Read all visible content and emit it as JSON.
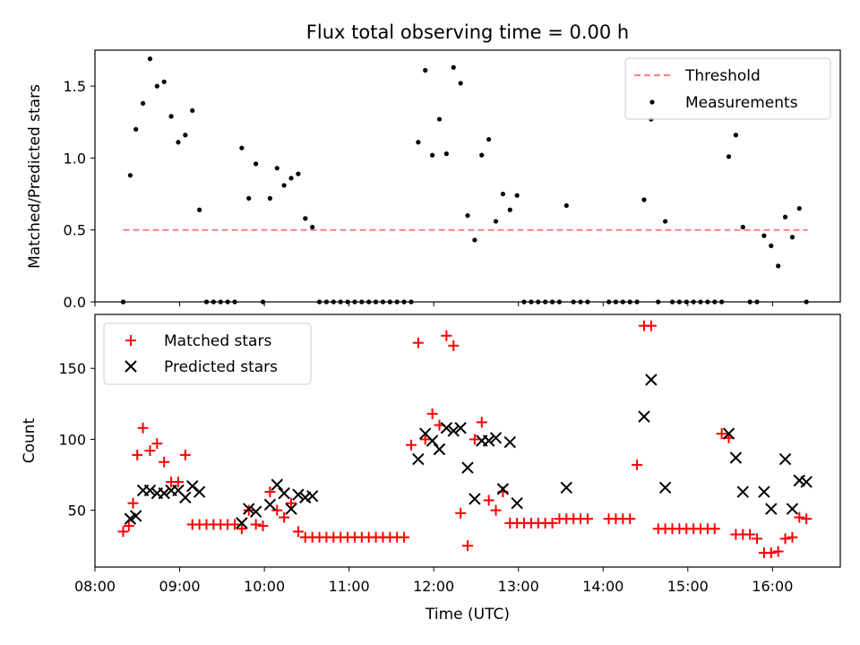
{
  "chart_data": [
    {
      "type": "scatter",
      "title": "Flux total observing time = 0.00 h",
      "xlabel": "",
      "ylabel": "Matched/Predicted stars",
      "xlim": [
        "08:00",
        "16:48"
      ],
      "ylim": [
        0,
        1.75
      ],
      "yticks": [
        "0.0",
        "0.5",
        "1.0",
        "1.5"
      ],
      "grid": false,
      "legend_placement": "top-right",
      "legend": [
        "Threshold",
        "Measurements"
      ],
      "threshold": {
        "name": "Threshold",
        "value": 0.5,
        "x_start": "08:20",
        "x_end": "16:25",
        "color": "#ff7f7f"
      },
      "measurements": {
        "name": "Measurements",
        "color": "#000000",
        "x": [
          "08:20",
          "08:25",
          "08:29",
          "08:34",
          "08:39",
          "08:44",
          "08:49",
          "08:54",
          "08:59",
          "09:04",
          "09:09",
          "09:14",
          "09:19",
          "09:24",
          "09:29",
          "09:34",
          "09:39",
          "09:44",
          "09:49",
          "09:54",
          "09:59",
          "10:04",
          "10:09",
          "10:14",
          "10:19",
          "10:24",
          "10:29",
          "10:34",
          "10:39",
          "10:44",
          "10:49",
          "10:54",
          "10:59",
          "11:04",
          "11:09",
          "11:14",
          "11:19",
          "11:24",
          "11:29",
          "11:34",
          "11:39",
          "11:44",
          "11:49",
          "11:54",
          "11:59",
          "12:04",
          "12:09",
          "12:14",
          "12:19",
          "12:24",
          "12:29",
          "12:34",
          "12:39",
          "12:44",
          "12:49",
          "12:54",
          "12:59",
          "13:04",
          "13:09",
          "13:14",
          "13:19",
          "13:24",
          "13:29",
          "13:34",
          "13:39",
          "13:44",
          "13:49",
          "14:04",
          "14:09",
          "14:14",
          "14:19",
          "14:24",
          "14:29",
          "14:34",
          "14:39",
          "14:44",
          "14:49",
          "14:54",
          "14:59",
          "15:04",
          "15:09",
          "15:14",
          "15:19",
          "15:24",
          "15:29",
          "15:34",
          "15:39",
          "15:44",
          "15:49",
          "15:54",
          "15:59",
          "16:04",
          "16:09",
          "16:14",
          "16:19",
          "16:24"
        ],
        "y": [
          0,
          0.88,
          1.2,
          1.38,
          1.69,
          1.5,
          1.53,
          1.29,
          1.11,
          1.16,
          1.33,
          0.64,
          0,
          0,
          0,
          0,
          0,
          1.07,
          0.72,
          0.96,
          0,
          0.72,
          0.93,
          0.81,
          0.86,
          0.89,
          0.58,
          0.52,
          0,
          0,
          0,
          0,
          0,
          0,
          0,
          0,
          0,
          0,
          0,
          0,
          0,
          0,
          1.11,
          1.61,
          1.02,
          1.27,
          1.03,
          1.63,
          1.52,
          0.6,
          0.43,
          1.02,
          1.13,
          0.56,
          0.75,
          0.64,
          0.74,
          0,
          0,
          0,
          0,
          0,
          0,
          0.67,
          0,
          0,
          0,
          0,
          0,
          0,
          0,
          0,
          0.71,
          1.27,
          0,
          0.56,
          0,
          0,
          0,
          0,
          0,
          0,
          0,
          0,
          1.01,
          1.16,
          0.52,
          0,
          0,
          0.46,
          0.39,
          0.25,
          0.59,
          0.45,
          0.65,
          0
        ]
      }
    },
    {
      "type": "scatter",
      "title": "",
      "xlabel": "Time (UTC)",
      "ylabel": "Count",
      "xlim": [
        "08:00",
        "16:48"
      ],
      "ylim": [
        10,
        188
      ],
      "yticks": [
        "50",
        "100",
        "150"
      ],
      "xticks": [
        "08:00",
        "09:00",
        "10:00",
        "11:00",
        "12:00",
        "13:00",
        "14:00",
        "15:00",
        "16:00"
      ],
      "grid": false,
      "legend_placement": "top-left",
      "legend": [
        "Matched stars",
        "Predicted stars"
      ],
      "series": [
        {
          "name": "Matched stars",
          "marker": "plus",
          "color": "#ff0000",
          "x": [
            "08:20",
            "08:24",
            "08:27",
            "08:30",
            "08:34",
            "08:39",
            "08:44",
            "08:49",
            "08:54",
            "08:59",
            "09:04",
            "09:09",
            "09:14",
            "09:19",
            "09:24",
            "09:29",
            "09:34",
            "09:39",
            "09:44",
            "09:49",
            "09:54",
            "09:59",
            "10:04",
            "10:09",
            "10:14",
            "10:19",
            "10:24",
            "10:29",
            "10:34",
            "10:39",
            "10:44",
            "10:49",
            "10:54",
            "10:59",
            "11:04",
            "11:09",
            "11:14",
            "11:19",
            "11:24",
            "11:29",
            "11:34",
            "11:39",
            "11:44",
            "11:49",
            "11:54",
            "11:59",
            "12:04",
            "12:09",
            "12:14",
            "12:19",
            "12:24",
            "12:29",
            "12:34",
            "12:39",
            "12:44",
            "12:49",
            "12:54",
            "12:59",
            "13:04",
            "13:09",
            "13:14",
            "13:19",
            "13:24",
            "13:29",
            "13:34",
            "13:39",
            "13:44",
            "13:49",
            "14:04",
            "14:09",
            "14:14",
            "14:19",
            "14:24",
            "14:29",
            "14:34",
            "14:39",
            "14:44",
            "14:49",
            "14:54",
            "14:59",
            "15:04",
            "15:09",
            "15:14",
            "15:19",
            "15:24",
            "15:29",
            "15:34",
            "15:39",
            "15:44",
            "15:49",
            "15:54",
            "15:59",
            "16:04",
            "16:09",
            "16:14",
            "16:19",
            "16:24"
          ],
          "y": [
            35,
            39,
            55,
            89,
            108,
            92,
            97,
            84,
            70,
            70,
            89,
            40,
            40,
            40,
            40,
            40,
            40,
            40,
            37,
            50,
            40,
            39,
            63,
            50,
            45,
            55,
            35,
            31,
            31,
            31,
            31,
            31,
            31,
            31,
            31,
            31,
            31,
            31,
            31,
            31,
            31,
            31,
            96,
            168,
            100,
            118,
            110,
            173,
            166,
            48,
            25,
            100,
            112,
            57,
            50,
            63,
            41,
            41,
            41,
            41,
            41,
            41,
            41,
            44,
            44,
            44,
            44,
            44,
            44,
            44,
            44,
            44,
            82,
            180,
            180,
            37,
            37,
            37,
            37,
            37,
            37,
            37,
            37,
            37,
            104,
            101,
            33,
            33,
            33,
            30,
            20,
            20,
            21,
            30,
            31,
            45,
            44
          ]
        },
        {
          "name": "Predicted stars",
          "marker": "x",
          "color": "#000000",
          "x": [
            "08:25",
            "08:29",
            "08:34",
            "08:39",
            "08:44",
            "08:49",
            "08:54",
            "08:59",
            "09:04",
            "09:09",
            "09:14",
            "09:44",
            "09:49",
            "09:54",
            "10:04",
            "10:09",
            "10:14",
            "10:19",
            "10:24",
            "10:29",
            "10:34",
            "11:49",
            "11:54",
            "11:59",
            "12:04",
            "12:09",
            "12:14",
            "12:19",
            "12:24",
            "12:29",
            "12:34",
            "12:39",
            "12:44",
            "12:49",
            "12:54",
            "12:59",
            "13:34",
            "14:29",
            "14:34",
            "14:44",
            "15:29",
            "15:34",
            "15:39",
            "15:54",
            "15:59",
            "16:09",
            "16:14",
            "16:19",
            "16:24"
          ],
          "y": [
            44,
            46,
            64,
            64,
            62,
            62,
            64,
            64,
            59,
            67,
            63,
            41,
            51,
            49,
            54,
            68,
            62,
            51,
            61,
            59,
            60,
            86,
            104,
            99,
            93,
            108,
            106,
            108,
            80,
            58,
            99,
            99,
            101,
            65,
            98,
            55,
            66,
            116,
            142,
            66,
            104,
            87,
            63,
            63,
            51,
            86,
            51,
            71,
            70
          ]
        }
      ]
    }
  ]
}
